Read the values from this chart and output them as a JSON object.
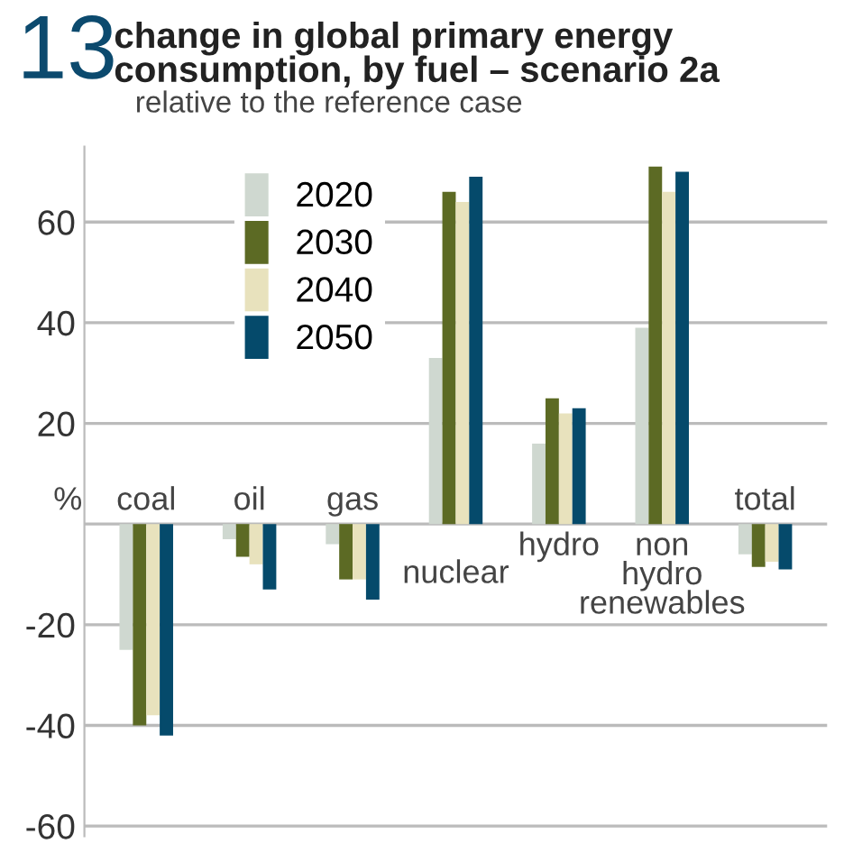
{
  "chart_data": {
    "type": "bar",
    "title": "change in global primary energy\nconsumption, by fuel – scenario 2a",
    "subtitle": "relative to the reference case",
    "annotations": [
      "13"
    ],
    "ylabel": "%",
    "categories": [
      "coal",
      "oil",
      "gas",
      "nuclear",
      "hydro",
      "non\nhydro\nrenewables",
      "total"
    ],
    "series": [
      {
        "name": "2020",
        "color": "#cfd8d0",
        "values": [
          -25,
          -3,
          -4,
          33,
          16,
          39,
          -6
        ]
      },
      {
        "name": "2030",
        "color": "#5c6a24",
        "values": [
          -40,
          -6.5,
          -11,
          66,
          25,
          71,
          -8.5
        ]
      },
      {
        "name": "2040",
        "color": "#e8e2bd",
        "values": [
          -38,
          -8,
          -11,
          64,
          22,
          66,
          -7.5
        ]
      },
      {
        "name": "2050",
        "color": "#054a6b",
        "values": [
          -42,
          -13,
          -15,
          69,
          23,
          70,
          -9
        ]
      }
    ],
    "ylim": [
      -62,
      75
    ],
    "yticks": [
      {
        "value": -60,
        "label": "-60"
      },
      {
        "value": -40,
        "label": "-40"
      },
      {
        "value": -20,
        "label": "-20"
      },
      20,
      40,
      60
    ],
    "grid": "y",
    "legend": "top left"
  }
}
